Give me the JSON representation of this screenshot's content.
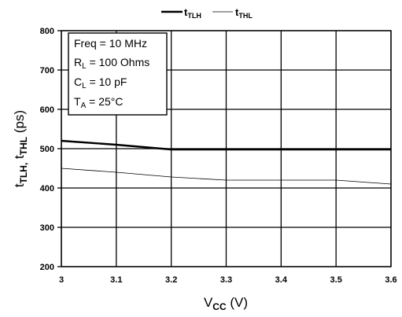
{
  "chart_data": {
    "type": "line",
    "xlabel": {
      "main": "V",
      "sub": "CC",
      "unit": " (V)"
    },
    "ylabel": {
      "a_main": "t",
      "a_sub": "TLH,",
      "b_main": " t",
      "b_sub": "THL",
      "unit": "  (ps)"
    },
    "x_ticks": [
      "3",
      "3.1",
      "3.2",
      "3.3",
      "3.4",
      "3.5",
      "3.6"
    ],
    "y_ticks": [
      "200",
      "300",
      "400",
      "500",
      "600",
      "700",
      "800"
    ],
    "xlim": [
      3,
      3.6
    ],
    "ylim": [
      200,
      800
    ],
    "grid": true,
    "legend_position": "top-center",
    "series": [
      {
        "name": "tTLH",
        "label_main": "t",
        "label_sub": "TLH",
        "color": "#000000",
        "emphasis": "bold",
        "x": [
          3,
          3.1,
          3.2,
          3.3,
          3.4,
          3.5,
          3.6
        ],
        "y": [
          520,
          510,
          498,
          498,
          498,
          498,
          498
        ]
      },
      {
        "name": "tTHL",
        "label_main": "t",
        "label_sub": "THL",
        "color": "#000000",
        "emphasis": "thin",
        "x": [
          3,
          3.1,
          3.2,
          3.3,
          3.4,
          3.5,
          3.6
        ],
        "y": [
          450,
          440,
          428,
          420,
          420,
          420,
          410
        ]
      }
    ],
    "conditions": [
      {
        "main": "Freq = 10 MHz",
        "sub": "",
        "rest": ""
      },
      {
        "main": "R",
        "sub": "L",
        "rest": " = 100 Ohms"
      },
      {
        "main": "C",
        "sub": "L",
        "rest": " = 10 pF"
      },
      {
        "main": "T",
        "sub": "A",
        "rest": " = 25°C"
      }
    ]
  }
}
